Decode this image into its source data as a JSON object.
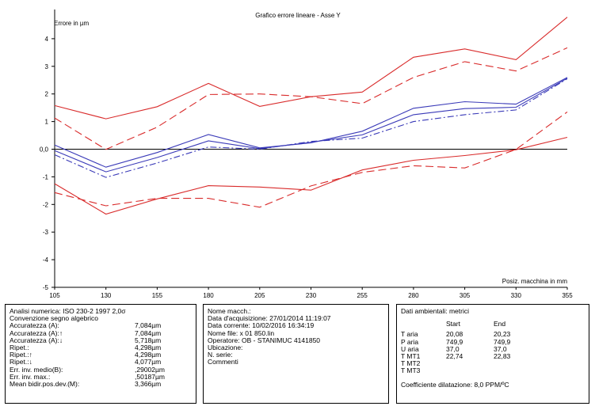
{
  "chart_data": {
    "type": "line",
    "title": "Grafico errore lineare - Asse Y",
    "ylabel": "Errore in µm",
    "xlabel": "Posiz. macchina in mm",
    "x": [
      105,
      130,
      155,
      180,
      205,
      230,
      255,
      280,
      305,
      330,
      355
    ],
    "x_tick_labels": [
      "105",
      "130",
      "155",
      "180",
      "205",
      "230",
      "255",
      "280",
      "305",
      "330",
      "355"
    ],
    "ylim": [
      -5,
      5
    ],
    "y_ticks": [
      -5,
      -4,
      -3,
      -2,
      -1,
      0,
      1,
      2,
      3,
      4
    ],
    "y_tick_labels": [
      "-5",
      "-4",
      "-3",
      "-2",
      "-1",
      "0,0",
      "1",
      "2",
      "3",
      "4"
    ],
    "series": [
      {
        "style": "red-solid-upper",
        "color": "#d92b2b",
        "dash": "none",
        "values": [
          1.58,
          1.1,
          1.54,
          2.38,
          1.55,
          1.9,
          2.07,
          3.33,
          3.63,
          3.24,
          4.78
        ]
      },
      {
        "style": "red-dashed-upper",
        "color": "#d92b2b",
        "dash": "10,5",
        "values": [
          1.13,
          -0.01,
          0.8,
          1.98,
          2.0,
          1.9,
          1.65,
          2.6,
          3.17,
          2.83,
          3.67
        ]
      },
      {
        "style": "red-solid-lower",
        "color": "#d92b2b",
        "dash": "none",
        "values": [
          -1.25,
          -2.35,
          -1.8,
          -1.32,
          -1.37,
          -1.48,
          -0.75,
          -0.4,
          -0.23,
          -0.02,
          0.43
        ]
      },
      {
        "style": "red-dashed-lower",
        "color": "#d92b2b",
        "dash": "10,5",
        "values": [
          -1.57,
          -2.05,
          -1.78,
          -1.78,
          -2.1,
          -1.33,
          -0.84,
          -0.6,
          -0.68,
          -0.01,
          1.35
        ]
      },
      {
        "style": "blue-solid-a",
        "color": "#3a3ab8",
        "dash": "none",
        "values": [
          0.15,
          -0.65,
          -0.12,
          0.53,
          0.05,
          0.23,
          0.65,
          1.48,
          1.72,
          1.63,
          2.6
        ]
      },
      {
        "style": "blue-solid-b",
        "color": "#3a3ab8",
        "dash": "none",
        "values": [
          -0.05,
          -0.82,
          -0.3,
          0.3,
          0.02,
          0.25,
          0.52,
          1.25,
          1.47,
          1.52,
          2.57
        ]
      },
      {
        "style": "blue-dashdot",
        "color": "#3a3ab8",
        "dash": "8,3,2,3",
        "values": [
          -0.2,
          -1.02,
          -0.5,
          0.08,
          0.0,
          0.28,
          0.4,
          1.0,
          1.25,
          1.42,
          2.55
        ]
      }
    ],
    "zero_line_color": "#000000",
    "grid": false
  },
  "analysis": {
    "rows": [
      {
        "label": "Analisi numerica:  ISO 230-2 1997 2,0σ",
        "value": ""
      },
      {
        "label": "Convenzione segno algebrico",
        "value": ""
      },
      {
        "label": "Accuratezza (A):",
        "value": "7,084µm"
      },
      {
        "label": "Accuratezza (A):↑",
        "value": "7,084µm"
      },
      {
        "label": "Accuratezza (A):↓",
        "value": "5,718µm"
      },
      {
        "label": "Ripet.:",
        "value": "4,298µm"
      },
      {
        "label": "Ripet.:↑",
        "value": "4,298µm"
      },
      {
        "label": "Ripet.:↓",
        "value": "4,077µm"
      },
      {
        "label": "Err. inv. medio(B):",
        "value": ",29002µm"
      },
      {
        "label": "Err. inv. max.:",
        "value": ",50187µm"
      },
      {
        "label": "Mean bidir.pos.dev.(M):",
        "value": "3,366µm"
      }
    ]
  },
  "info": {
    "lines": [
      "Nome macch.:",
      "Data d'acquisizione: 27/01/2014 11:19:07",
      "Data corrente: 10/02/2016 16:34:19",
      "Nome file:  x 01 850.lin",
      "Operatore:  OB - STANIMUC 4141850",
      "Ubicazione:",
      "N. serie:",
      "Commenti"
    ]
  },
  "environment": {
    "title": "Dati ambientali: metrici",
    "headers": [
      "",
      "Start",
      "End"
    ],
    "rows": [
      [
        "T aria",
        "20,08",
        "20,23"
      ],
      [
        "P aria",
        "749,9",
        "749,9"
      ],
      [
        "U aria",
        "37,0",
        "37,0"
      ],
      [
        "T MT1",
        "22,74",
        "22,83"
      ],
      [
        "T MT2",
        "",
        ""
      ],
      [
        "T MT3",
        "",
        ""
      ]
    ],
    "coefficient": "Coefficiente dilatazione: 8,0 PPM/ºC"
  }
}
